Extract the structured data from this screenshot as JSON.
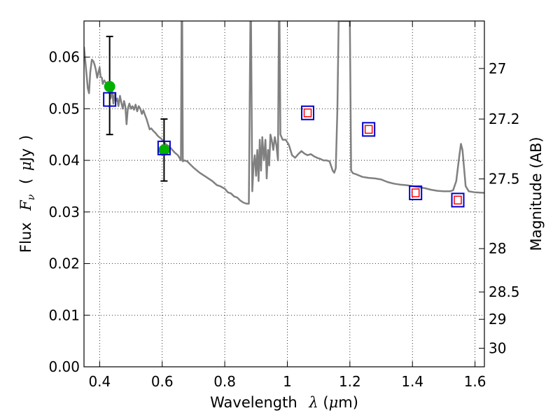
{
  "chart_data": {
    "type": "scatter",
    "title": "",
    "xlabel": "Wavelength",
    "xlabel_symbol": "λ",
    "xlabel_unit_open": " (",
    "xlabel_unit_mu": "μ",
    "xlabel_unit_rest": "m)",
    "ylabel": "Flux",
    "ylabel_symbol": "F",
    "ylabel_subscript": "ν",
    "ylabel_unit_open": "(",
    "ylabel_unit_mu": "μ",
    "ylabel_unit_rest": "Jy",
    "ylabel_unit_close": ")",
    "ylabel_right": "Magnitude (AB)",
    "xlim": [
      0.35,
      1.63
    ],
    "ylim": [
      0.0,
      0.067
    ],
    "grid": true,
    "x_ticks": [
      0.4,
      0.6,
      0.8,
      1.0,
      1.2,
      1.4,
      1.6
    ],
    "x_tick_labels": [
      "0.4",
      "0.6",
      "0.8",
      "1",
      "1.2",
      "1.4",
      "1.6"
    ],
    "y_ticks": [
      0.0,
      0.01,
      0.02,
      0.03,
      0.04,
      0.05,
      0.06
    ],
    "y_tick_labels": [
      "0.00",
      "0.01",
      "0.02",
      "0.03",
      "0.04",
      "0.05",
      "0.06"
    ],
    "mag_ticks": [
      {
        "label": "27",
        "flux": 0.0578
      },
      {
        "label": "27.2",
        "flux": 0.048
      },
      {
        "label": "27.5",
        "flux": 0.0364
      },
      {
        "label": "28",
        "flux": 0.0229
      },
      {
        "label": "28.5",
        "flux": 0.0145
      },
      {
        "label": "29",
        "flux": 0.0092
      },
      {
        "label": "30",
        "flux": 0.0036
      }
    ],
    "series": [
      {
        "type": "line",
        "color": "#808080",
        "points": [
          [
            0.35,
            0.062
          ],
          [
            0.356,
            0.058
          ],
          [
            0.362,
            0.054
          ],
          [
            0.366,
            0.053
          ],
          [
            0.37,
            0.057
          ],
          [
            0.375,
            0.0595
          ],
          [
            0.38,
            0.0592
          ],
          [
            0.384,
            0.0585
          ],
          [
            0.388,
            0.0575
          ],
          [
            0.392,
            0.056
          ],
          [
            0.396,
            0.057
          ],
          [
            0.4,
            0.058
          ],
          [
            0.403,
            0.0562
          ],
          [
            0.407,
            0.056
          ],
          [
            0.41,
            0.0548
          ],
          [
            0.415,
            0.0555
          ],
          [
            0.42,
            0.055
          ],
          [
            0.425,
            0.0538
          ],
          [
            0.43,
            0.0545
          ],
          [
            0.435,
            0.052
          ],
          [
            0.44,
            0.0535
          ],
          [
            0.444,
            0.051
          ],
          [
            0.448,
            0.0528
          ],
          [
            0.452,
            0.0515
          ],
          [
            0.456,
            0.052
          ],
          [
            0.46,
            0.0505
          ],
          [
            0.465,
            0.0525
          ],
          [
            0.47,
            0.051
          ],
          [
            0.474,
            0.05
          ],
          [
            0.478,
            0.0515
          ],
          [
            0.482,
            0.0505
          ],
          [
            0.486,
            0.047
          ],
          [
            0.49,
            0.05
          ],
          [
            0.495,
            0.051
          ],
          [
            0.5,
            0.05
          ],
          [
            0.505,
            0.0505
          ],
          [
            0.51,
            0.0498
          ],
          [
            0.515,
            0.0508
          ],
          [
            0.52,
            0.0495
          ],
          [
            0.525,
            0.0505
          ],
          [
            0.53,
            0.05
          ],
          [
            0.535,
            0.049
          ],
          [
            0.54,
            0.0497
          ],
          [
            0.545,
            0.0488
          ],
          [
            0.55,
            0.048
          ],
          [
            0.555,
            0.047
          ],
          [
            0.56,
            0.046
          ],
          [
            0.565,
            0.0462
          ],
          [
            0.57,
            0.0458
          ],
          [
            0.575,
            0.0455
          ],
          [
            0.58,
            0.0452
          ],
          [
            0.585,
            0.0448
          ],
          [
            0.59,
            0.0445
          ],
          [
            0.595,
            0.0443
          ],
          [
            0.6,
            0.044
          ],
          [
            0.61,
            0.0432
          ],
          [
            0.62,
            0.0428
          ],
          [
            0.63,
            0.0422
          ],
          [
            0.64,
            0.0415
          ],
          [
            0.65,
            0.041
          ],
          [
            0.655,
            0.0405
          ],
          [
            0.66,
            0.04
          ],
          [
            0.662,
            0.067
          ],
          [
            0.664,
            0.067
          ],
          [
            0.666,
            0.0398
          ],
          [
            0.67,
            0.04
          ],
          [
            0.68,
            0.0398
          ],
          [
            0.69,
            0.0392
          ],
          [
            0.7,
            0.0386
          ],
          [
            0.72,
            0.0376
          ],
          [
            0.74,
            0.0368
          ],
          [
            0.76,
            0.036
          ],
          [
            0.775,
            0.0352
          ],
          [
            0.785,
            0.035
          ],
          [
            0.8,
            0.0345
          ],
          [
            0.81,
            0.0338
          ],
          [
            0.82,
            0.0336
          ],
          [
            0.83,
            0.033
          ],
          [
            0.84,
            0.0328
          ],
          [
            0.85,
            0.0322
          ],
          [
            0.86,
            0.0318
          ],
          [
            0.87,
            0.0316
          ],
          [
            0.877,
            0.0316
          ],
          [
            0.882,
            0.067
          ],
          [
            0.884,
            0.067
          ],
          [
            0.888,
            0.034
          ],
          [
            0.892,
            0.039
          ],
          [
            0.896,
            0.041
          ],
          [
            0.9,
            0.037
          ],
          [
            0.904,
            0.042
          ],
          [
            0.908,
            0.036
          ],
          [
            0.912,
            0.044
          ],
          [
            0.916,
            0.038
          ],
          [
            0.92,
            0.0445
          ],
          [
            0.925,
            0.04
          ],
          [
            0.93,
            0.044
          ],
          [
            0.934,
            0.0365
          ],
          [
            0.938,
            0.042
          ],
          [
            0.942,
            0.039
          ],
          [
            0.946,
            0.045
          ],
          [
            0.95,
            0.044
          ],
          [
            0.955,
            0.042
          ],
          [
            0.96,
            0.0445
          ],
          [
            0.965,
            0.043
          ],
          [
            0.97,
            0.04
          ],
          [
            0.973,
            0.067
          ],
          [
            0.975,
            0.067
          ],
          [
            0.978,
            0.045
          ],
          [
            0.985,
            0.044
          ],
          [
            0.995,
            0.044
          ],
          [
            1.005,
            0.043
          ],
          [
            1.015,
            0.041
          ],
          [
            1.025,
            0.0405
          ],
          [
            1.035,
            0.0412
          ],
          [
            1.045,
            0.0418
          ],
          [
            1.055,
            0.0413
          ],
          [
            1.065,
            0.041
          ],
          [
            1.075,
            0.0412
          ],
          [
            1.085,
            0.0408
          ],
          [
            1.095,
            0.0405
          ],
          [
            1.105,
            0.0403
          ],
          [
            1.115,
            0.04
          ],
          [
            1.125,
            0.04
          ],
          [
            1.135,
            0.0398
          ],
          [
            1.145,
            0.038
          ],
          [
            1.15,
            0.0376
          ],
          [
            1.155,
            0.0385
          ],
          [
            1.16,
            0.05
          ],
          [
            1.164,
            0.067
          ],
          [
            1.17,
            0.067
          ],
          [
            1.196,
            0.067
          ],
          [
            1.2,
            0.067
          ],
          [
            1.204,
            0.038
          ],
          [
            1.21,
            0.0375
          ],
          [
            1.22,
            0.0373
          ],
          [
            1.24,
            0.0368
          ],
          [
            1.26,
            0.0366
          ],
          [
            1.28,
            0.0365
          ],
          [
            1.3,
            0.0363
          ],
          [
            1.32,
            0.0358
          ],
          [
            1.34,
            0.0355
          ],
          [
            1.36,
            0.0353
          ],
          [
            1.38,
            0.0352
          ],
          [
            1.4,
            0.035
          ],
          [
            1.42,
            0.0348
          ],
          [
            1.44,
            0.0346
          ],
          [
            1.46,
            0.0343
          ],
          [
            1.48,
            0.0341
          ],
          [
            1.5,
            0.034
          ],
          [
            1.52,
            0.034
          ],
          [
            1.53,
            0.0342
          ],
          [
            1.54,
            0.036
          ],
          [
            1.55,
            0.041
          ],
          [
            1.555,
            0.0432
          ],
          [
            1.56,
            0.042
          ],
          [
            1.57,
            0.035
          ],
          [
            1.58,
            0.034
          ],
          [
            1.6,
            0.0338
          ],
          [
            1.63,
            0.0337
          ]
        ]
      },
      {
        "type": "errorbar",
        "color": "#000000",
        "points": [
          {
            "x": 0.432,
            "y": 0.0543,
            "low": 0.045,
            "high": 0.064
          },
          {
            "x": 0.606,
            "y": 0.042,
            "low": 0.036,
            "high": 0.048
          }
        ]
      },
      {
        "type": "circle",
        "color": "#00b000",
        "points": [
          [
            0.432,
            0.0543
          ],
          [
            0.606,
            0.042
          ]
        ]
      },
      {
        "type": "square",
        "color": "#0000cc",
        "points": [
          [
            0.432,
            0.0518
          ],
          [
            0.606,
            0.0424
          ],
          [
            1.065,
            0.0492
          ],
          [
            1.26,
            0.046
          ],
          [
            1.41,
            0.0337
          ],
          [
            1.545,
            0.0323
          ]
        ]
      },
      {
        "type": "small-square",
        "color": "#ff0000",
        "points": [
          [
            1.065,
            0.0492
          ],
          [
            1.26,
            0.046
          ],
          [
            1.41,
            0.0337
          ],
          [
            1.545,
            0.0323
          ]
        ]
      }
    ]
  }
}
